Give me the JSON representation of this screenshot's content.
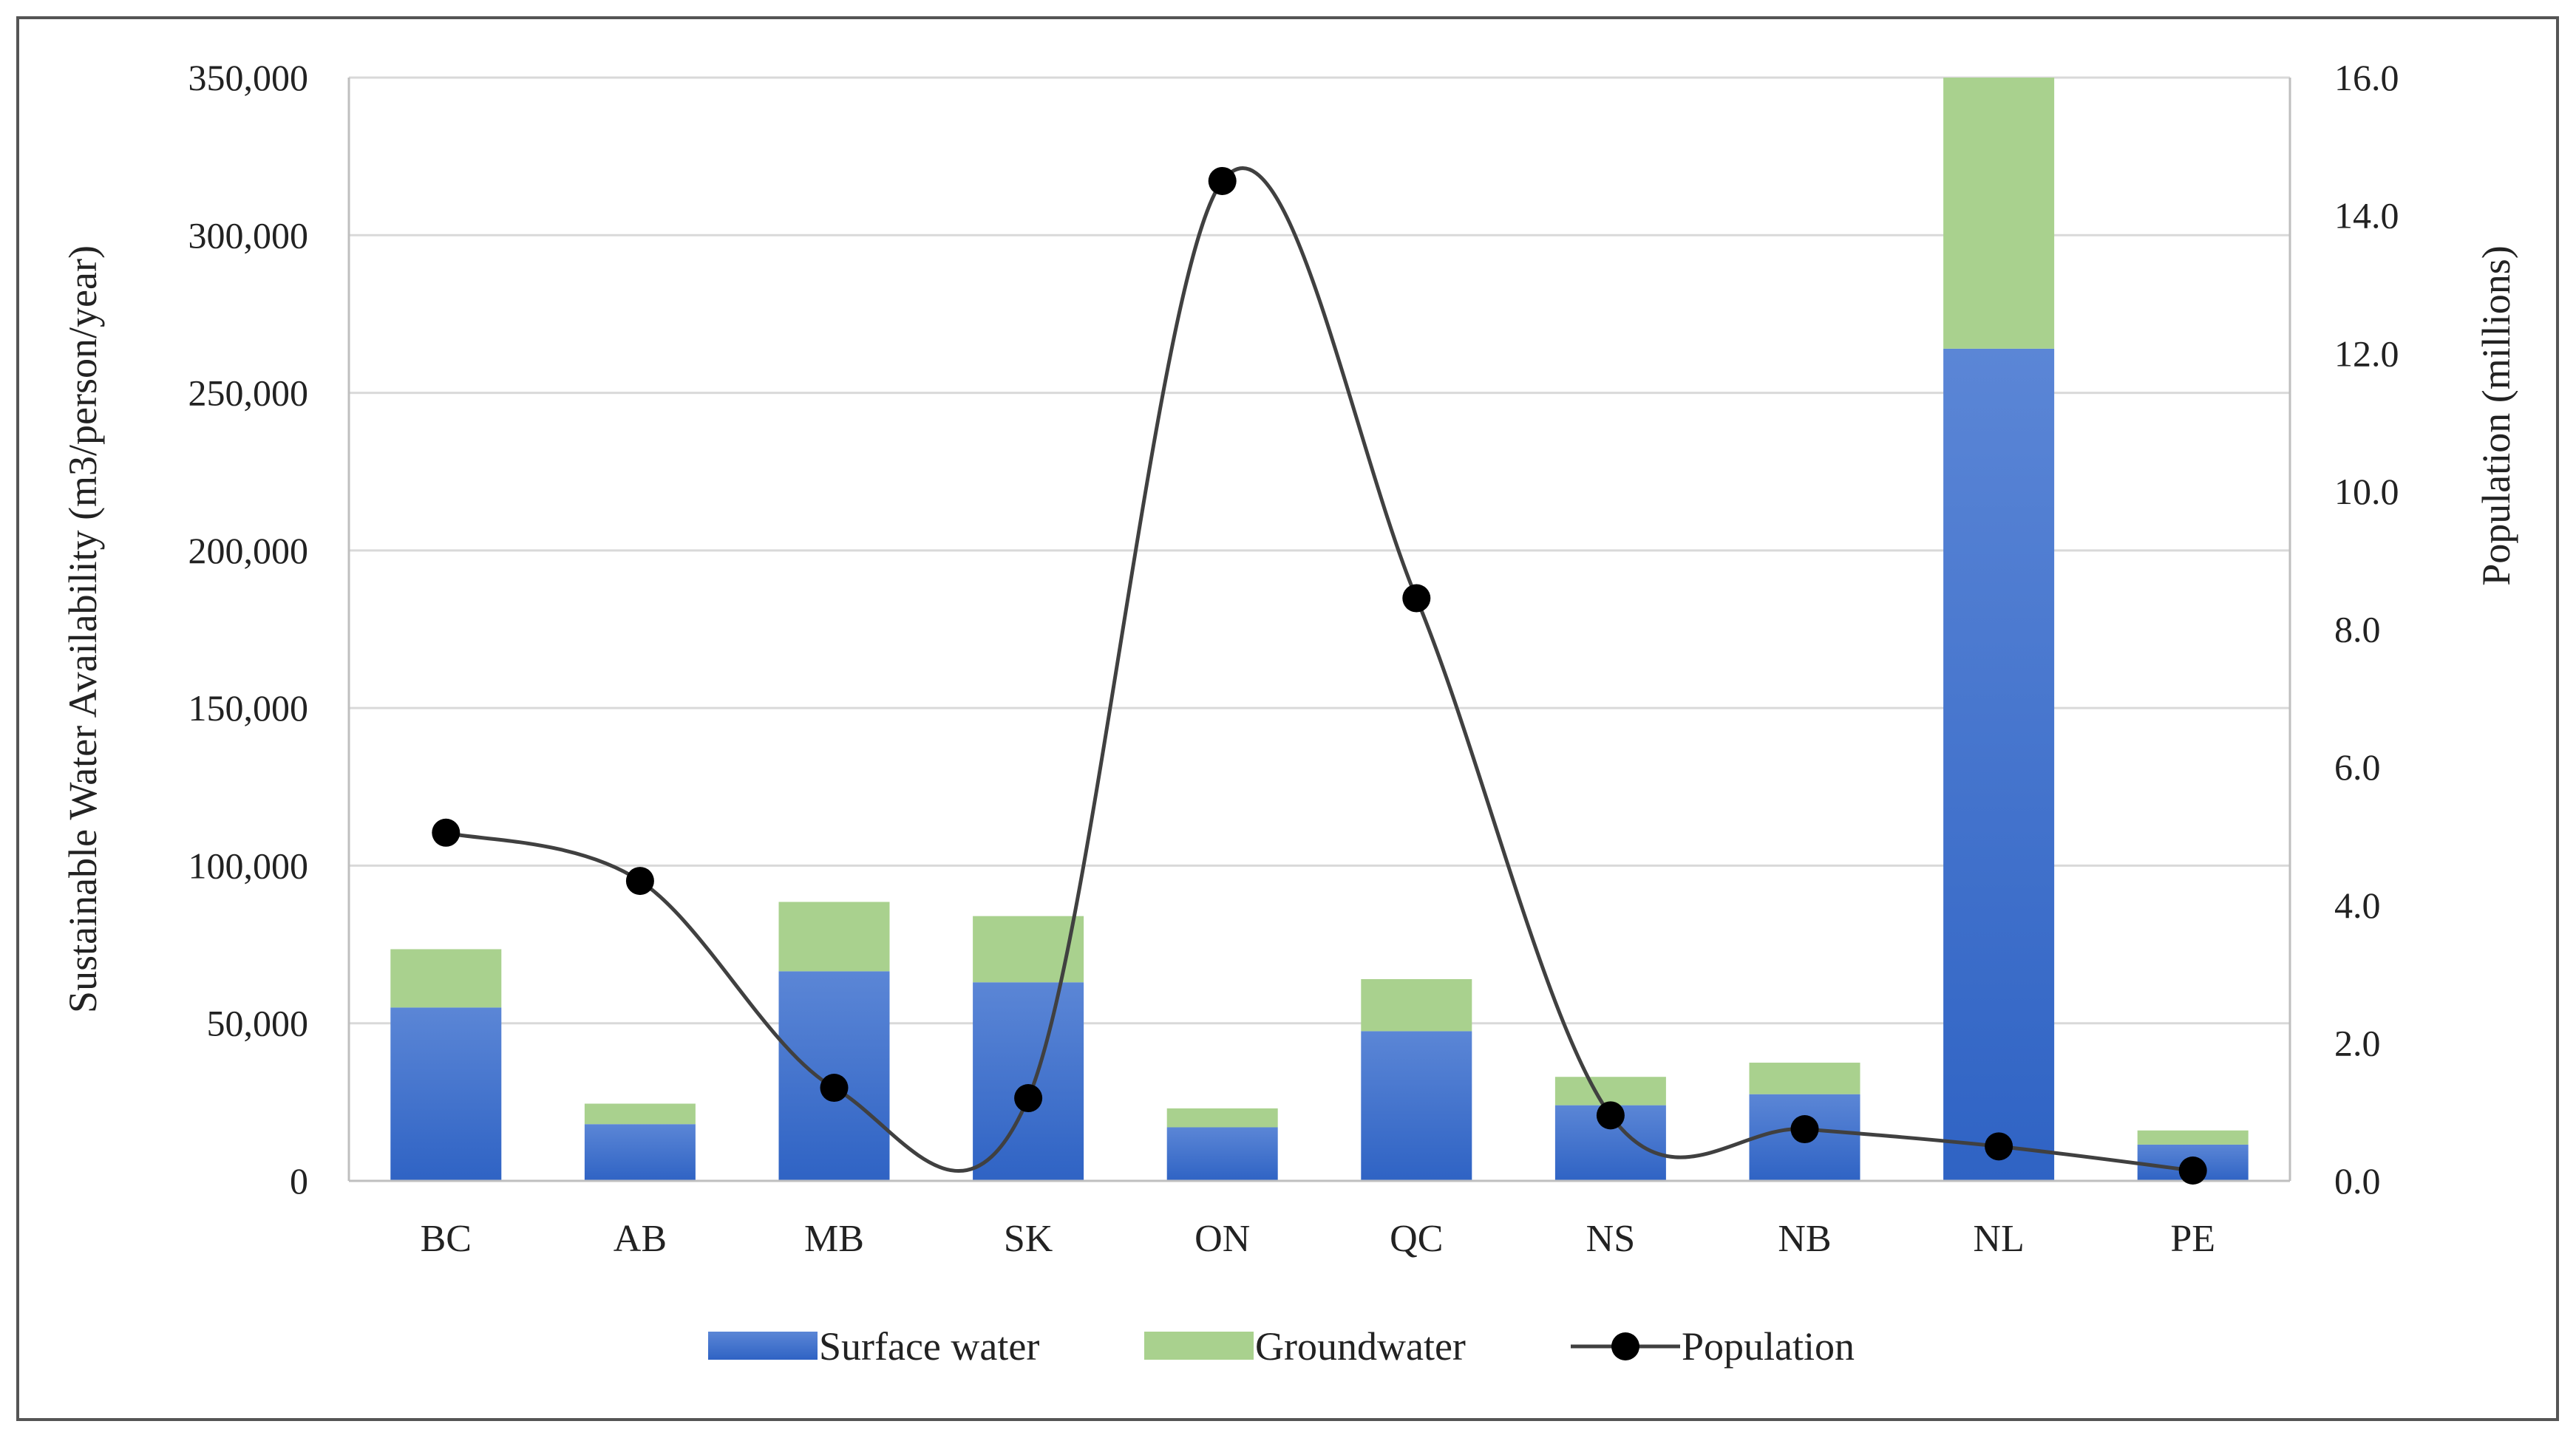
{
  "chart_data": {
    "type": "bar",
    "stacked": true,
    "categories": [
      "BC",
      "AB",
      "MB",
      "SK",
      "ON",
      "QC",
      "NS",
      "NB",
      "NL",
      "PE"
    ],
    "series": [
      {
        "name": "Surface water",
        "kind": "bar",
        "axis": "left",
        "color": "#3a6fcf",
        "values": [
          55000,
          18000,
          66500,
          63000,
          17000,
          47500,
          24000,
          27500,
          264000,
          11500
        ]
      },
      {
        "name": "Groundwater",
        "kind": "bar",
        "axis": "left",
        "color": "#a9d18e",
        "values": [
          18500,
          6500,
          22000,
          21000,
          6000,
          16500,
          9000,
          10000,
          86000,
          4500
        ]
      },
      {
        "name": "Population",
        "kind": "line",
        "axis": "right",
        "color": "#000000",
        "line_color": "#404040",
        "values": [
          5.05,
          4.35,
          1.35,
          1.2,
          14.5,
          8.45,
          0.95,
          0.75,
          0.5,
          0.15
        ]
      }
    ],
    "ylabel": "Sustainable Water Availability  (m3/person/year)",
    "y2label": "Population (millions)",
    "ylim": [
      0,
      350000
    ],
    "yticks": [
      0,
      50000,
      100000,
      150000,
      200000,
      250000,
      300000,
      350000
    ],
    "ytick_labels": [
      "0",
      "50,000",
      "100,000",
      "150,000",
      "200,000",
      "250,000",
      "300,000",
      "350,000"
    ],
    "y2lim": [
      0,
      16
    ],
    "y2ticks": [
      0,
      2,
      4,
      6,
      8,
      10,
      12,
      14,
      16
    ],
    "y2tick_labels": [
      "0.0",
      "2.0",
      "4.0",
      "6.0",
      "8.0",
      "10.0",
      "12.0",
      "14.0",
      "16.0"
    ],
    "grid": true,
    "legend": {
      "position": "bottom",
      "entries": [
        "Surface water",
        "Groundwater",
        "Population"
      ]
    }
  }
}
